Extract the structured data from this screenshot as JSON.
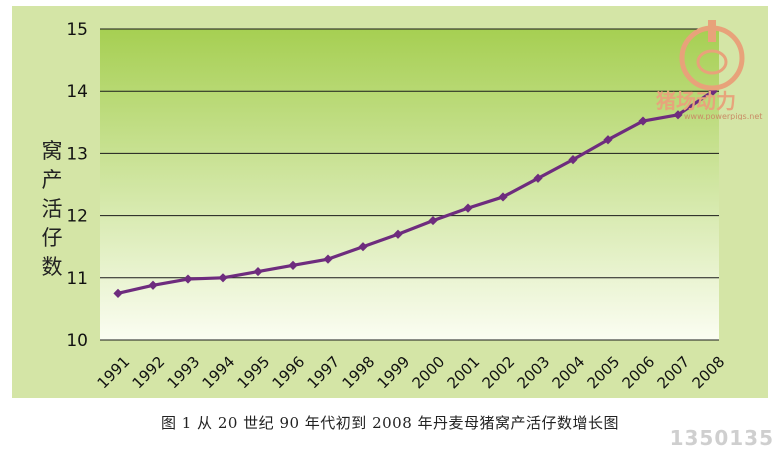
{
  "caption": "图 1   从 20 世纪 90 年代初到 2008 年丹麦母猪窝产活仔数增长图",
  "watermark": {
    "brand": "猪场动力",
    "url": "www.powerpigs.net",
    "corner_site": "1350135"
  },
  "colors": {
    "panel_bg": "#d4e5a6",
    "plot_top": "#a6cf52",
    "plot_bottom": "#fbfdf2",
    "series": "#6e2c7e",
    "grid": "#1a1a1a"
  },
  "chart_data": {
    "type": "line",
    "title": "",
    "xlabel": "",
    "ylabel": "窝产活仔数",
    "x": [
      "1991",
      "1992",
      "1993",
      "1994",
      "1995",
      "1996",
      "1997",
      "1998",
      "1999",
      "2000",
      "2001",
      "2002",
      "2003",
      "2004",
      "2005",
      "2006",
      "2007",
      "2008"
    ],
    "y_ticks": [
      10,
      11,
      12,
      13,
      14,
      15
    ],
    "ylim": [
      10,
      15
    ],
    "grid": true,
    "legend": "none",
    "series": [
      {
        "name": "",
        "marker": "diamond",
        "values": [
          10.75,
          10.88,
          10.98,
          11.0,
          11.1,
          11.2,
          11.3,
          11.5,
          11.7,
          11.92,
          12.12,
          12.3,
          12.6,
          12.9,
          13.22,
          13.52,
          13.62,
          14.0
        ]
      }
    ]
  }
}
